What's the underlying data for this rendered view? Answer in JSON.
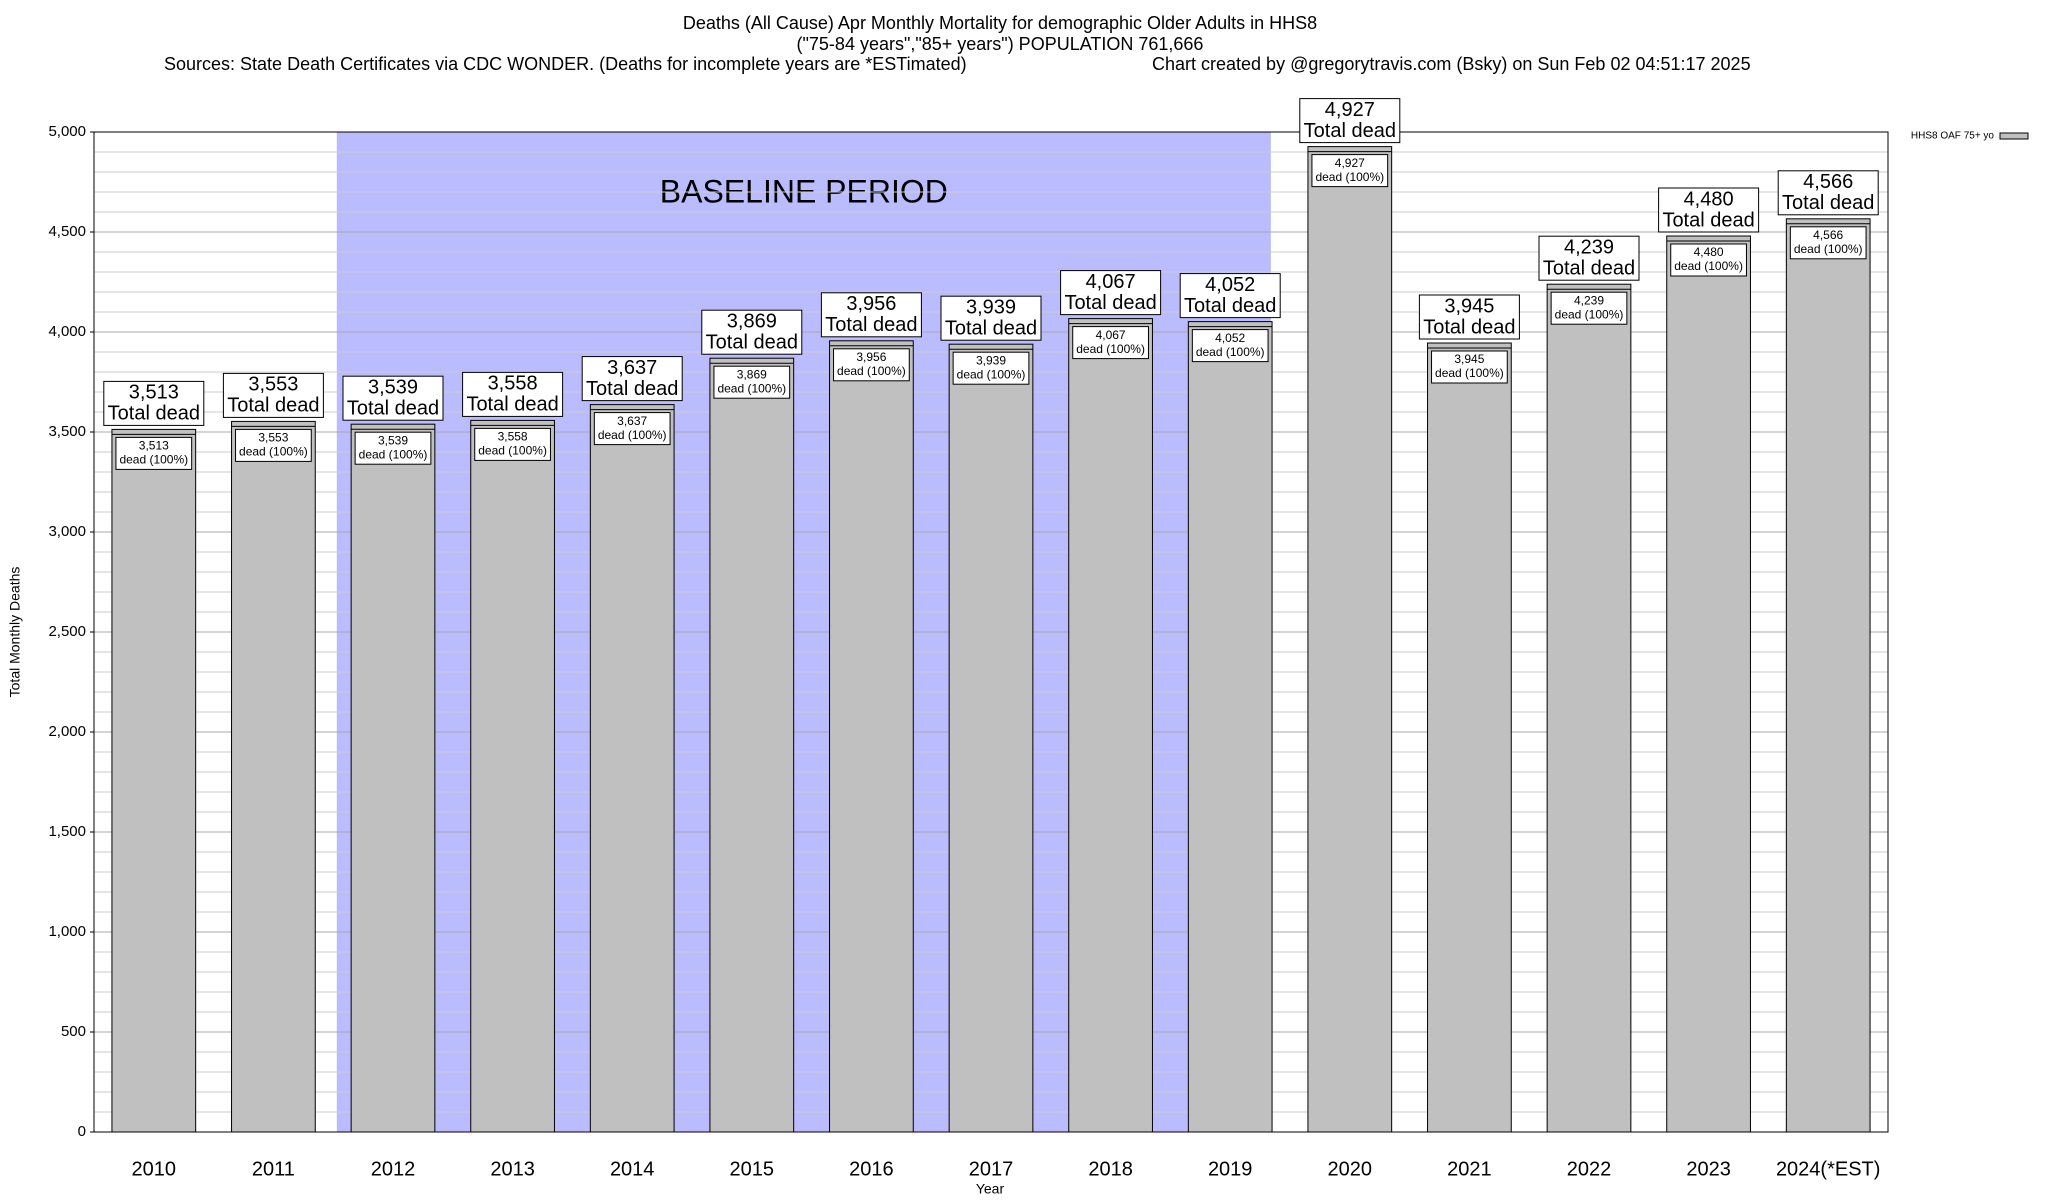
{
  "chart_data": {
    "type": "bar",
    "title": "Deaths (All Cause) Apr Monthly Mortality for demographic Older Adults in HHS8",
    "subtitle": "(\"75-84 years\",\"85+ years\") POPULATION 761,666",
    "sources": "Sources: State Death Certificates via CDC WONDER. (Deaths for incomplete years are *ESTimated)",
    "credit": "Chart created by @gregorytravis.com (Bsky) on Sun Feb 02 04:51:17 2025",
    "x_label": "Year",
    "y_label": "Total Monthly Deaths",
    "categories": [
      "2010",
      "2011",
      "2012",
      "2013",
      "2014",
      "2015",
      "2016",
      "2017",
      "2018",
      "2019",
      "2020",
      "2021",
      "2022",
      "2023",
      "2024(*EST)"
    ],
    "series": [
      {
        "name": "HHS8 OAF 75+ yo",
        "color": "#c0c0c0",
        "values": [
          3513,
          3553,
          3539,
          3558,
          3637,
          3869,
          3956,
          3939,
          4067,
          4052,
          4927,
          3945,
          4239,
          4480,
          4566
        ],
        "value_labels": [
          "3,513",
          "3,553",
          "3,539",
          "3,558",
          "3,637",
          "3,869",
          "3,956",
          "3,939",
          "4,067",
          "4,052",
          "4,927",
          "3,945",
          "4,239",
          "4,480",
          "4,566"
        ]
      }
    ],
    "top_label_text": "Total dead",
    "inner_label_text": "dead (100%)",
    "shaded_region": {
      "label": "BASELINE PERIOD",
      "from": "2012",
      "to": "2019",
      "color": "#bbbbff"
    },
    "ylim": [
      0,
      5000
    ],
    "yticks": [
      0,
      500,
      {
        "value": 1000,
        "label": "1,000"
      },
      {
        "value": 1500,
        "label": "1,500"
      },
      {
        "value": 2000,
        "label": "2,000"
      },
      {
        "value": 2500,
        "label": "2,500"
      },
      {
        "value": 3000,
        "label": "3,000"
      },
      {
        "value": 3500,
        "label": "3,500"
      },
      {
        "value": 4000,
        "label": "4,000"
      },
      {
        "value": 4500,
        "label": "4,500"
      },
      {
        "value": 5000,
        "label": "5,000"
      }
    ],
    "grid": true,
    "legend": "top-right"
  }
}
